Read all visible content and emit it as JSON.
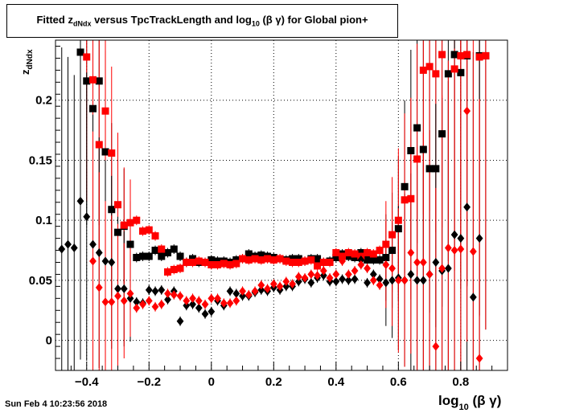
{
  "chart_data": {
    "type": "scatter",
    "title": {
      "pre": "Fitted  z",
      "sub": "dNdx",
      "mid": "  versus TpcTrackLength and log",
      "sub2": "10",
      "post": " (β γ) for Global pion+"
    },
    "xlabel": {
      "main": "log",
      "sub": "10",
      "rest": " (β γ)"
    },
    "ylabel": {
      "main": "z",
      "sub": "dNdx"
    },
    "xlim": [
      -0.5,
      0.95
    ],
    "ylim": [
      -0.025,
      0.25
    ],
    "xticks": [
      -0.4,
      -0.2,
      0,
      0.2,
      0.4,
      0.6,
      0.8
    ],
    "xtick_labels": [
      "−0.4",
      "−0.2",
      "0",
      "0.2",
      "0.4",
      "0.6",
      "0.8"
    ],
    "yticks": [
      0,
      0.05,
      0.1,
      0.15,
      0.2
    ],
    "ytick_labels": [
      "0",
      "0.05",
      "0.1",
      "0.15",
      "0.2"
    ],
    "grid": true,
    "series": [
      {
        "marker": "square",
        "color": "#000000",
        "points": [
          [
            -0.42,
            0.24
          ],
          [
            -0.4,
            0.216
          ],
          [
            -0.38,
            0.193
          ],
          [
            -0.36,
            0.216
          ],
          [
            -0.34,
            0.157
          ],
          [
            -0.32,
            0.109
          ],
          [
            -0.3,
            0.09
          ],
          [
            -0.28,
            0.095
          ],
          [
            -0.26,
            0.08
          ],
          [
            -0.24,
            0.069
          ],
          [
            -0.22,
            0.07
          ],
          [
            -0.2,
            0.07
          ],
          [
            -0.18,
            0.075
          ],
          [
            -0.16,
            0.07
          ],
          [
            -0.14,
            0.073
          ],
          [
            -0.12,
            0.076
          ],
          [
            -0.1,
            0.07
          ],
          [
            -0.08,
            0.065
          ],
          [
            -0.06,
            0.068
          ],
          [
            -0.04,
            0.065
          ],
          [
            -0.02,
            0.065
          ],
          [
            0.0,
            0.067
          ],
          [
            0.02,
            0.066
          ],
          [
            0.04,
            0.066
          ],
          [
            0.06,
            0.065
          ],
          [
            0.08,
            0.067
          ],
          [
            0.1,
            0.068
          ],
          [
            0.12,
            0.072
          ],
          [
            0.14,
            0.07
          ],
          [
            0.16,
            0.071
          ],
          [
            0.18,
            0.07
          ],
          [
            0.2,
            0.069
          ],
          [
            0.22,
            0.068
          ],
          [
            0.24,
            0.067
          ],
          [
            0.26,
            0.068
          ],
          [
            0.28,
            0.068
          ],
          [
            0.3,
            0.066
          ],
          [
            0.32,
            0.068
          ],
          [
            0.34,
            0.068
          ],
          [
            0.36,
            0.065
          ],
          [
            0.38,
            0.066
          ],
          [
            0.4,
            0.069
          ],
          [
            0.42,
            0.072
          ],
          [
            0.44,
            0.07
          ],
          [
            0.46,
            0.069
          ],
          [
            0.48,
            0.073
          ],
          [
            0.5,
            0.067
          ],
          [
            0.52,
            0.067
          ],
          [
            0.54,
            0.067
          ],
          [
            0.56,
            0.069
          ],
          [
            0.58,
            0.075
          ],
          [
            0.6,
            0.093
          ],
          [
            0.62,
            0.128
          ],
          [
            0.64,
            0.158
          ],
          [
            0.66,
            0.177
          ],
          [
            0.68,
            0.159
          ],
          [
            0.7,
            0.143
          ],
          [
            0.72,
            0.143
          ],
          [
            0.74,
            0.172
          ],
          [
            0.76,
            0.222
          ],
          [
            0.78,
            0.238
          ],
          [
            0.8,
            0.223
          ],
          [
            0.82,
            0.237
          ],
          [
            0.86,
            0.237
          ],
          [
            0.88,
            0.237
          ]
        ]
      },
      {
        "marker": "square",
        "color": "#ff0000",
        "points": [
          [
            -0.4,
            0.236
          ],
          [
            -0.38,
            0.217
          ],
          [
            -0.36,
            0.163
          ],
          [
            -0.34,
            0.191
          ],
          [
            -0.32,
            0.156
          ],
          [
            -0.3,
            0.113
          ],
          [
            -0.28,
            0.096
          ],
          [
            -0.26,
            0.098
          ],
          [
            -0.24,
            0.1
          ],
          [
            -0.22,
            0.091
          ],
          [
            -0.2,
            0.092
          ],
          [
            -0.18,
            0.087
          ],
          [
            -0.16,
            0.076
          ],
          [
            -0.14,
            0.057
          ],
          [
            -0.12,
            0.059
          ],
          [
            -0.1,
            0.06
          ],
          [
            -0.08,
            0.065
          ],
          [
            -0.06,
            0.065
          ],
          [
            -0.04,
            0.066
          ],
          [
            -0.02,
            0.065
          ],
          [
            0.0,
            0.063
          ],
          [
            0.02,
            0.063
          ],
          [
            0.04,
            0.064
          ],
          [
            0.06,
            0.063
          ],
          [
            0.08,
            0.064
          ],
          [
            0.1,
            0.068
          ],
          [
            0.12,
            0.067
          ],
          [
            0.14,
            0.068
          ],
          [
            0.16,
            0.067
          ],
          [
            0.18,
            0.068
          ],
          [
            0.2,
            0.067
          ],
          [
            0.22,
            0.068
          ],
          [
            0.24,
            0.066
          ],
          [
            0.26,
            0.065
          ],
          [
            0.28,
            0.065
          ],
          [
            0.3,
            0.066
          ],
          [
            0.32,
            0.067
          ],
          [
            0.34,
            0.062
          ],
          [
            0.36,
            0.065
          ],
          [
            0.38,
            0.065
          ],
          [
            0.4,
            0.073
          ],
          [
            0.42,
            0.07
          ],
          [
            0.44,
            0.073
          ],
          [
            0.46,
            0.072
          ],
          [
            0.48,
            0.07
          ],
          [
            0.5,
            0.073
          ],
          [
            0.52,
            0.072
          ],
          [
            0.54,
            0.075
          ],
          [
            0.56,
            0.08
          ],
          [
            0.58,
            0.088
          ],
          [
            0.6,
            0.1
          ],
          [
            0.62,
            0.117
          ],
          [
            0.64,
            0.118
          ],
          [
            0.66,
            0.151
          ],
          [
            0.68,
            0.225
          ],
          [
            0.7,
            0.228
          ],
          [
            0.72,
            0.222
          ],
          [
            0.74,
            0.238
          ],
          [
            0.78,
            0.226
          ],
          [
            0.8,
            0.237
          ],
          [
            0.82,
            0.238
          ],
          [
            0.86,
            0.236
          ],
          [
            0.88,
            0.237
          ]
        ]
      },
      {
        "marker": "diamond",
        "color": "#000000",
        "points": [
          [
            -0.48,
            0.076
          ],
          [
            -0.46,
            0.08
          ],
          [
            -0.44,
            0.077
          ],
          [
            -0.42,
            0.116
          ],
          [
            -0.4,
            0.103
          ],
          [
            -0.38,
            0.08
          ],
          [
            -0.36,
            0.073
          ],
          [
            -0.34,
            0.066
          ],
          [
            -0.32,
            0.065
          ],
          [
            -0.3,
            0.043
          ],
          [
            -0.28,
            0.043
          ],
          [
            -0.26,
            0.035
          ],
          [
            -0.24,
            0.032
          ],
          [
            -0.22,
            0.031
          ],
          [
            -0.2,
            0.042
          ],
          [
            -0.18,
            0.041
          ],
          [
            -0.16,
            0.042
          ],
          [
            -0.14,
            0.034
          ],
          [
            -0.12,
            0.041
          ],
          [
            -0.1,
            0.016
          ],
          [
            -0.08,
            0.029
          ],
          [
            -0.06,
            0.03
          ],
          [
            -0.04,
            0.027
          ],
          [
            -0.02,
            0.022
          ],
          [
            0.0,
            0.024
          ],
          [
            0.02,
            0.033
          ],
          [
            0.04,
            0.029
          ],
          [
            0.06,
            0.041
          ],
          [
            0.08,
            0.039
          ],
          [
            0.1,
            0.037
          ],
          [
            0.12,
            0.037
          ],
          [
            0.14,
            0.04
          ],
          [
            0.16,
            0.042
          ],
          [
            0.18,
            0.041
          ],
          [
            0.2,
            0.044
          ],
          [
            0.22,
            0.042
          ],
          [
            0.24,
            0.045
          ],
          [
            0.26,
            0.045
          ],
          [
            0.28,
            0.049
          ],
          [
            0.3,
            0.051
          ],
          [
            0.32,
            0.048
          ],
          [
            0.34,
            0.052
          ],
          [
            0.36,
            0.054
          ],
          [
            0.38,
            0.049
          ],
          [
            0.4,
            0.049
          ],
          [
            0.42,
            0.051
          ],
          [
            0.44,
            0.05
          ],
          [
            0.46,
            0.051
          ],
          [
            0.48,
            0.067
          ],
          [
            0.5,
            0.048
          ],
          [
            0.52,
            0.055
          ],
          [
            0.54,
            0.051
          ],
          [
            0.56,
            0.048
          ],
          [
            0.58,
            0.05
          ],
          [
            0.6,
            0.052
          ],
          [
            0.62,
            0.05
          ],
          [
            0.64,
            0.055
          ],
          [
            0.66,
            0.05
          ],
          [
            0.68,
            0.05
          ],
          [
            0.7,
            0.055
          ],
          [
            0.72,
            0.065
          ],
          [
            0.74,
            0.058
          ],
          [
            0.76,
            0.06
          ],
          [
            0.78,
            0.088
          ],
          [
            0.8,
            0.085
          ],
          [
            0.82,
            0.111
          ],
          [
            0.84,
            0.036
          ],
          [
            0.86,
            0.085
          ]
        ]
      },
      {
        "marker": "diamond",
        "color": "#ff0000",
        "points": [
          [
            -0.38,
            0.066
          ],
          [
            -0.36,
            0.044
          ],
          [
            -0.34,
            0.032
          ],
          [
            -0.32,
            0.032
          ],
          [
            -0.3,
            0.037
          ],
          [
            -0.28,
            0.033
          ],
          [
            -0.26,
            0.039
          ],
          [
            -0.24,
            0.027
          ],
          [
            -0.22,
            0.03
          ],
          [
            -0.2,
            0.033
          ],
          [
            -0.18,
            0.028
          ],
          [
            -0.16,
            0.03
          ],
          [
            -0.14,
            0.039
          ],
          [
            -0.12,
            0.038
          ],
          [
            -0.1,
            0.037
          ],
          [
            -0.08,
            0.033
          ],
          [
            -0.06,
            0.035
          ],
          [
            -0.04,
            0.033
          ],
          [
            -0.02,
            0.03
          ],
          [
            0.0,
            0.035
          ],
          [
            0.02,
            0.035
          ],
          [
            0.04,
            0.031
          ],
          [
            0.06,
            0.031
          ],
          [
            0.08,
            0.033
          ],
          [
            0.1,
            0.041
          ],
          [
            0.12,
            0.038
          ],
          [
            0.14,
            0.041
          ],
          [
            0.16,
            0.046
          ],
          [
            0.18,
            0.043
          ],
          [
            0.2,
            0.047
          ],
          [
            0.22,
            0.045
          ],
          [
            0.24,
            0.049
          ],
          [
            0.26,
            0.047
          ],
          [
            0.28,
            0.053
          ],
          [
            0.3,
            0.052
          ],
          [
            0.32,
            0.055
          ],
          [
            0.34,
            0.054
          ],
          [
            0.36,
            0.058
          ],
          [
            0.38,
            0.052
          ],
          [
            0.4,
            0.055
          ],
          [
            0.42,
            0.066
          ],
          [
            0.44,
            0.055
          ],
          [
            0.46,
            0.058
          ],
          [
            0.48,
            0.063
          ],
          [
            0.5,
            0.06
          ],
          [
            0.52,
            0.05
          ],
          [
            0.54,
            0.046
          ],
          [
            0.56,
            0.063
          ],
          [
            0.58,
            0.06
          ],
          [
            0.6,
            0.05
          ],
          [
            0.62,
            0.05
          ],
          [
            0.64,
            0.073
          ],
          [
            0.66,
            0.065
          ],
          [
            0.68,
            0.065
          ],
          [
            0.7,
            0.055
          ],
          [
            0.72,
            -0.005
          ],
          [
            0.74,
            0.06
          ],
          [
            0.76,
            0.077
          ],
          [
            0.78,
            0.075
          ],
          [
            0.8,
            0.076
          ],
          [
            0.82,
            0.191
          ],
          [
            0.84,
            0.074
          ],
          [
            0.86,
            -0.015
          ]
        ]
      }
    ]
  },
  "footer": {
    "timestamp": "Sun Feb  4 10:23:56 2018"
  }
}
